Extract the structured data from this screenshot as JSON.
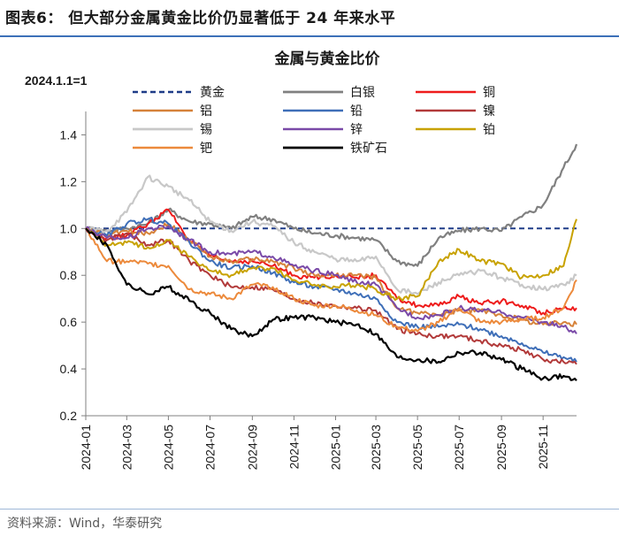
{
  "figure": {
    "label": "图表6：",
    "title": "但大部分金属黄金比价仍显著低于 24 年来水平",
    "source": "资料来源：Wind，华泰研究"
  },
  "chart_data": {
    "type": "line",
    "title": "金属与黄金比价",
    "base_note": "2024.1.1=1",
    "ylim": [
      0.2,
      1.5
    ],
    "yticks": [
      "0.2",
      "0.4",
      "0.6",
      "0.8",
      "1.0",
      "1.2",
      "1.4"
    ],
    "xticks": [
      "2024-01",
      "2024-03",
      "2024-05",
      "2024-07",
      "2024-09",
      "2024-11",
      "2025-01",
      "2025-03",
      "2025-05",
      "2025-07",
      "2025-09",
      "2025-11"
    ],
    "x_range": [
      "2024-01",
      "2025-12-20"
    ],
    "grid": false,
    "legend_placement": "top",
    "series": [
      {
        "name": "黄金",
        "color": "#1f3c88",
        "dash": true,
        "width": 2,
        "points": [
          [
            "2024-01",
            1.0
          ],
          [
            "2025-12-20",
            1.0
          ]
        ]
      },
      {
        "name": "白银",
        "color": "#808080",
        "width": 2.2,
        "points": [
          [
            "2024-01",
            1.0
          ],
          [
            "2024-02",
            0.99
          ],
          [
            "2024-03",
            1.0
          ],
          [
            "2024-04",
            1.02
          ],
          [
            "2024-05",
            1.08
          ],
          [
            "2024-06",
            1.03
          ],
          [
            "2024-07",
            1.02
          ],
          [
            "2024-08",
            1.0
          ],
          [
            "2024-09",
            1.05
          ],
          [
            "2024-10",
            1.04
          ],
          [
            "2024-11",
            1.0
          ],
          [
            "2024-12",
            0.98
          ],
          [
            "2025-01",
            0.97
          ],
          [
            "2025-02",
            0.96
          ],
          [
            "2025-03",
            0.95
          ],
          [
            "2025-04",
            0.86
          ],
          [
            "2025-05",
            0.84
          ],
          [
            "2025-06",
            0.96
          ],
          [
            "2025-07",
            0.99
          ],
          [
            "2025-08",
            1.0
          ],
          [
            "2025-09",
            0.99
          ],
          [
            "2025-10",
            1.05
          ],
          [
            "2025-11",
            1.1
          ],
          [
            "2025-12",
            1.26
          ],
          [
            "2025-12-20",
            1.36
          ]
        ]
      },
      {
        "name": "铜",
        "color": "#ee1c1c",
        "width": 2,
        "points": [
          [
            "2024-01",
            1.0
          ],
          [
            "2024-02",
            0.96
          ],
          [
            "2024-03",
            0.97
          ],
          [
            "2024-04",
            1.02
          ],
          [
            "2024-05",
            1.08
          ],
          [
            "2024-06",
            0.95
          ],
          [
            "2024-07",
            0.88
          ],
          [
            "2024-08",
            0.86
          ],
          [
            "2024-09",
            0.86
          ],
          [
            "2024-10",
            0.84
          ],
          [
            "2024-11",
            0.8
          ],
          [
            "2024-12",
            0.79
          ],
          [
            "2025-01",
            0.8
          ],
          [
            "2025-02",
            0.79
          ],
          [
            "2025-03",
            0.8
          ],
          [
            "2025-04",
            0.7
          ],
          [
            "2025-05",
            0.67
          ],
          [
            "2025-06",
            0.67
          ],
          [
            "2025-07",
            0.71
          ],
          [
            "2025-08",
            0.68
          ],
          [
            "2025-09",
            0.69
          ],
          [
            "2025-10",
            0.67
          ],
          [
            "2025-11",
            0.64
          ],
          [
            "2025-12",
            0.66
          ],
          [
            "2025-12-20",
            0.66
          ]
        ]
      },
      {
        "name": "铝",
        "color": "#d6823a",
        "width": 2,
        "points": [
          [
            "2024-01",
            1.0
          ],
          [
            "2024-02",
            0.97
          ],
          [
            "2024-03",
            0.99
          ],
          [
            "2024-04",
            0.98
          ],
          [
            "2024-05",
            1.02
          ],
          [
            "2024-06",
            0.95
          ],
          [
            "2024-07",
            0.88
          ],
          [
            "2024-08",
            0.86
          ],
          [
            "2024-09",
            0.87
          ],
          [
            "2024-10",
            0.86
          ],
          [
            "2024-11",
            0.83
          ],
          [
            "2024-12",
            0.8
          ],
          [
            "2025-01",
            0.8
          ],
          [
            "2025-02",
            0.8
          ],
          [
            "2025-03",
            0.79
          ],
          [
            "2025-04",
            0.66
          ],
          [
            "2025-05",
            0.64
          ],
          [
            "2025-06",
            0.63
          ],
          [
            "2025-07",
            0.65
          ],
          [
            "2025-08",
            0.65
          ],
          [
            "2025-09",
            0.63
          ],
          [
            "2025-10",
            0.61
          ],
          [
            "2025-11",
            0.59
          ],
          [
            "2025-12",
            0.6
          ],
          [
            "2025-12-20",
            0.59
          ]
        ]
      },
      {
        "name": "铅",
        "color": "#3f6fb8",
        "width": 2,
        "points": [
          [
            "2024-01",
            1.0
          ],
          [
            "2024-02",
            0.97
          ],
          [
            "2024-03",
            1.02
          ],
          [
            "2024-04",
            1.04
          ],
          [
            "2024-05",
            1.02
          ],
          [
            "2024-06",
            0.94
          ],
          [
            "2024-07",
            0.86
          ],
          [
            "2024-08",
            0.83
          ],
          [
            "2024-09",
            0.84
          ],
          [
            "2024-10",
            0.81
          ],
          [
            "2024-11",
            0.77
          ],
          [
            "2024-12",
            0.75
          ],
          [
            "2025-01",
            0.74
          ],
          [
            "2025-02",
            0.72
          ],
          [
            "2025-03",
            0.7
          ],
          [
            "2025-04",
            0.6
          ],
          [
            "2025-05",
            0.58
          ],
          [
            "2025-06",
            0.58
          ],
          [
            "2025-07",
            0.59
          ],
          [
            "2025-08",
            0.57
          ],
          [
            "2025-09",
            0.54
          ],
          [
            "2025-10",
            0.51
          ],
          [
            "2025-11",
            0.47
          ],
          [
            "2025-12",
            0.45
          ],
          [
            "2025-12-20",
            0.43
          ]
        ]
      },
      {
        "name": "镍",
        "color": "#b23a3a",
        "width": 2,
        "points": [
          [
            "2024-01",
            1.0
          ],
          [
            "2024-02",
            0.95
          ],
          [
            "2024-03",
            0.98
          ],
          [
            "2024-04",
            0.93
          ],
          [
            "2024-05",
            0.95
          ],
          [
            "2024-06",
            0.86
          ],
          [
            "2024-07",
            0.8
          ],
          [
            "2024-08",
            0.75
          ],
          [
            "2024-09",
            0.75
          ],
          [
            "2024-10",
            0.74
          ],
          [
            "2024-11",
            0.7
          ],
          [
            "2024-12",
            0.68
          ],
          [
            "2025-01",
            0.67
          ],
          [
            "2025-02",
            0.66
          ],
          [
            "2025-03",
            0.65
          ],
          [
            "2025-04",
            0.57
          ],
          [
            "2025-05",
            0.55
          ],
          [
            "2025-06",
            0.54
          ],
          [
            "2025-07",
            0.54
          ],
          [
            "2025-08",
            0.52
          ],
          [
            "2025-09",
            0.5
          ],
          [
            "2025-10",
            0.48
          ],
          [
            "2025-11",
            0.44
          ],
          [
            "2025-12",
            0.43
          ],
          [
            "2025-12-20",
            0.42
          ]
        ]
      },
      {
        "name": "锡",
        "color": "#c8c8c8",
        "width": 2.2,
        "points": [
          [
            "2024-01",
            1.0
          ],
          [
            "2024-02",
            0.99
          ],
          [
            "2024-03",
            1.07
          ],
          [
            "2024-04",
            1.22
          ],
          [
            "2024-05",
            1.18
          ],
          [
            "2024-06",
            1.12
          ],
          [
            "2024-07",
            1.03
          ],
          [
            "2024-08",
            0.99
          ],
          [
            "2024-09",
            1.03
          ],
          [
            "2024-10",
            1.01
          ],
          [
            "2024-11",
            0.94
          ],
          [
            "2024-12",
            0.9
          ],
          [
            "2025-01",
            0.87
          ],
          [
            "2025-02",
            0.86
          ],
          [
            "2025-03",
            0.88
          ],
          [
            "2025-04",
            0.74
          ],
          [
            "2025-05",
            0.72
          ],
          [
            "2025-06",
            0.77
          ],
          [
            "2025-07",
            0.8
          ],
          [
            "2025-08",
            0.82
          ],
          [
            "2025-09",
            0.79
          ],
          [
            "2025-10",
            0.76
          ],
          [
            "2025-11",
            0.74
          ],
          [
            "2025-12",
            0.76
          ],
          [
            "2025-12-20",
            0.8
          ]
        ]
      },
      {
        "name": "锌",
        "color": "#7a4aa8",
        "width": 2,
        "points": [
          [
            "2024-01",
            1.0
          ],
          [
            "2024-02",
            0.96
          ],
          [
            "2024-03",
            0.96
          ],
          [
            "2024-04",
            1.0
          ],
          [
            "2024-05",
            1.01
          ],
          [
            "2024-06",
            0.95
          ],
          [
            "2024-07",
            0.9
          ],
          [
            "2024-08",
            0.89
          ],
          [
            "2024-09",
            0.9
          ],
          [
            "2024-10",
            0.88
          ],
          [
            "2024-11",
            0.84
          ],
          [
            "2024-12",
            0.82
          ],
          [
            "2025-01",
            0.8
          ],
          [
            "2025-02",
            0.77
          ],
          [
            "2025-03",
            0.76
          ],
          [
            "2025-04",
            0.66
          ],
          [
            "2025-05",
            0.62
          ],
          [
            "2025-06",
            0.63
          ],
          [
            "2025-07",
            0.66
          ],
          [
            "2025-08",
            0.65
          ],
          [
            "2025-09",
            0.64
          ],
          [
            "2025-10",
            0.62
          ],
          [
            "2025-11",
            0.6
          ],
          [
            "2025-12",
            0.58
          ],
          [
            "2025-12-20",
            0.55
          ]
        ]
      },
      {
        "name": "铂",
        "color": "#c8a200",
        "width": 2,
        "points": [
          [
            "2024-01",
            1.0
          ],
          [
            "2024-02",
            0.93
          ],
          [
            "2024-03",
            0.94
          ],
          [
            "2024-04",
            0.92
          ],
          [
            "2024-05",
            0.95
          ],
          [
            "2024-06",
            0.88
          ],
          [
            "2024-07",
            0.82
          ],
          [
            "2024-08",
            0.8
          ],
          [
            "2024-09",
            0.83
          ],
          [
            "2024-10",
            0.83
          ],
          [
            "2024-11",
            0.78
          ],
          [
            "2024-12",
            0.76
          ],
          [
            "2025-01",
            0.75
          ],
          [
            "2025-02",
            0.76
          ],
          [
            "2025-03",
            0.74
          ],
          [
            "2025-04",
            0.7
          ],
          [
            "2025-05",
            0.71
          ],
          [
            "2025-06",
            0.86
          ],
          [
            "2025-07",
            0.91
          ],
          [
            "2025-08",
            0.86
          ],
          [
            "2025-09",
            0.85
          ],
          [
            "2025-10",
            0.79
          ],
          [
            "2025-11",
            0.8
          ],
          [
            "2025-12",
            0.84
          ],
          [
            "2025-12-20",
            1.04
          ]
        ]
      },
      {
        "name": "钯",
        "color": "#ec8a3c",
        "width": 2,
        "points": [
          [
            "2024-01",
            1.0
          ],
          [
            "2024-02",
            0.86
          ],
          [
            "2024-03",
            0.86
          ],
          [
            "2024-04",
            0.85
          ],
          [
            "2024-05",
            0.84
          ],
          [
            "2024-06",
            0.74
          ],
          [
            "2024-07",
            0.72
          ],
          [
            "2024-08",
            0.7
          ],
          [
            "2024-09",
            0.76
          ],
          [
            "2024-10",
            0.75
          ],
          [
            "2024-11",
            0.7
          ],
          [
            "2024-12",
            0.67
          ],
          [
            "2025-01",
            0.67
          ],
          [
            "2025-02",
            0.65
          ],
          [
            "2025-03",
            0.63
          ],
          [
            "2025-04",
            0.58
          ],
          [
            "2025-05",
            0.56
          ],
          [
            "2025-06",
            0.6
          ],
          [
            "2025-07",
            0.66
          ],
          [
            "2025-08",
            0.6
          ],
          [
            "2025-09",
            0.6
          ],
          [
            "2025-10",
            0.61
          ],
          [
            "2025-11",
            0.62
          ],
          [
            "2025-12",
            0.66
          ],
          [
            "2025-12-20",
            0.78
          ]
        ]
      },
      {
        "name": "铁矿石",
        "color": "#000000",
        "width": 2.2,
        "points": [
          [
            "2024-01",
            1.0
          ],
          [
            "2024-02",
            0.93
          ],
          [
            "2024-03",
            0.76
          ],
          [
            "2024-04",
            0.72
          ],
          [
            "2024-05",
            0.75
          ],
          [
            "2024-06",
            0.69
          ],
          [
            "2024-07",
            0.64
          ],
          [
            "2024-08",
            0.57
          ],
          [
            "2024-09",
            0.54
          ],
          [
            "2024-10",
            0.61
          ],
          [
            "2024-11",
            0.62
          ],
          [
            "2024-12",
            0.62
          ],
          [
            "2025-01",
            0.6
          ],
          [
            "2025-02",
            0.59
          ],
          [
            "2025-03",
            0.55
          ],
          [
            "2025-04",
            0.45
          ],
          [
            "2025-05",
            0.44
          ],
          [
            "2025-06",
            0.43
          ],
          [
            "2025-07",
            0.47
          ],
          [
            "2025-08",
            0.47
          ],
          [
            "2025-09",
            0.44
          ],
          [
            "2025-10",
            0.4
          ],
          [
            "2025-11",
            0.36
          ],
          [
            "2025-12",
            0.37
          ],
          [
            "2025-12-20",
            0.35
          ]
        ]
      }
    ]
  }
}
